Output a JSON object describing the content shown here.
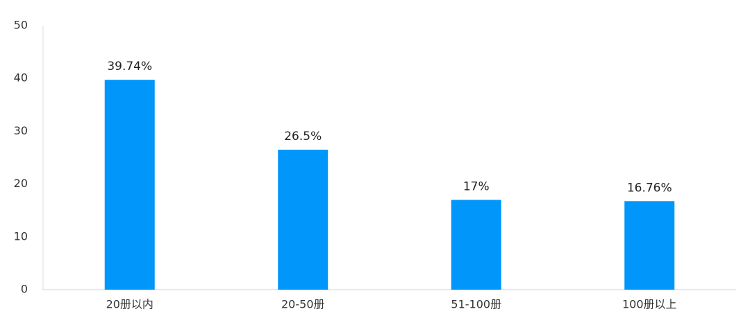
{
  "chart_data": {
    "type": "bar",
    "categories": [
      "20册以内",
      "20-50册",
      "51-100册",
      "100册以上"
    ],
    "values": [
      39.74,
      26.5,
      17,
      16.76
    ],
    "value_labels": [
      "39.74%",
      "26.5%",
      "17%",
      "16.76%"
    ],
    "color": "#0096fa",
    "ylim": [
      0,
      50
    ],
    "yticks": [
      0,
      10,
      20,
      30,
      40,
      50
    ],
    "grid": false
  }
}
